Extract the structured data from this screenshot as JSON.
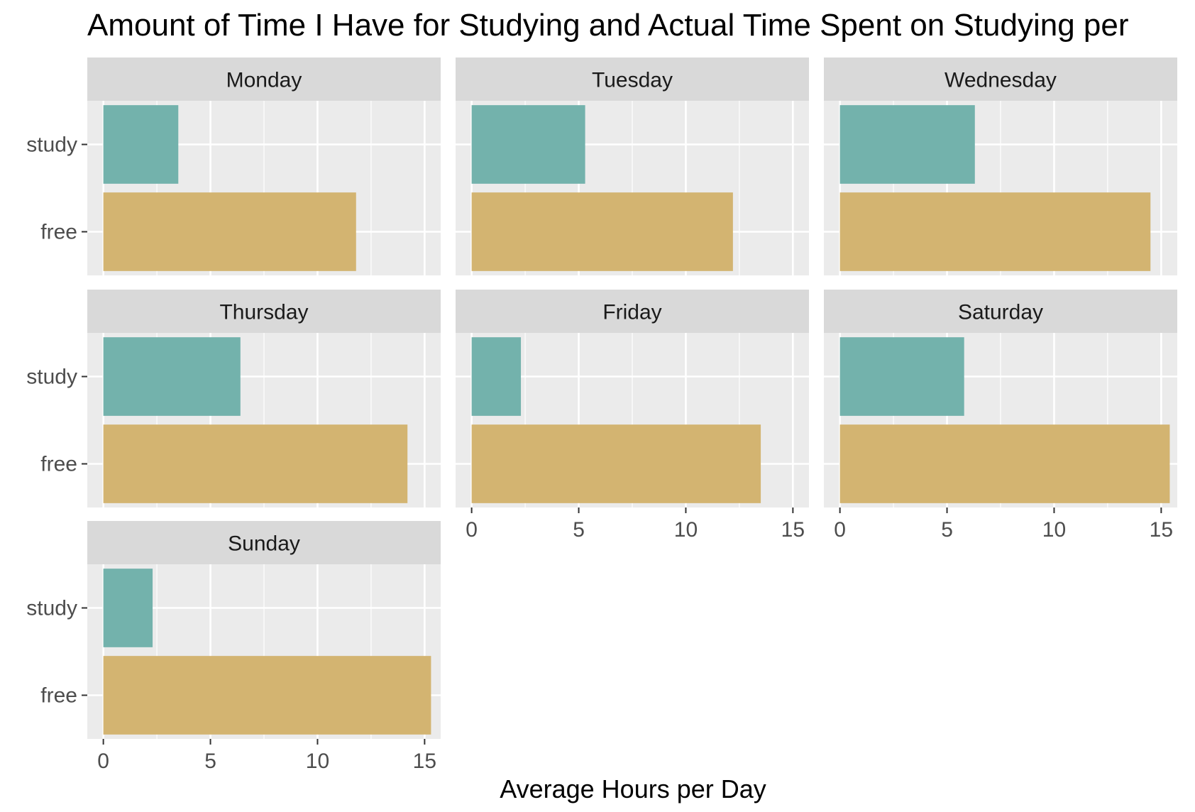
{
  "chart_data": {
    "type": "bar",
    "orientation": "horizontal",
    "title": "Amount of Time I Have for Studying and Actual Time Spent on Studying per",
    "xlabel": "Average Hours per Day",
    "ylabel": "",
    "xlim": [
      -0.75,
      15.75
    ],
    "x_ticks": [
      "0",
      "5",
      "10",
      "15"
    ],
    "categories": [
      "study",
      "free"
    ],
    "grid": true,
    "legend": "none",
    "colors": {
      "study": "#73B2AC",
      "free": "#D3B471"
    },
    "panel_background": "#EBEBEB",
    "strip_background": "#D9D9D9",
    "facets": [
      {
        "label": "Monday",
        "study": 3.5,
        "free": 11.8
      },
      {
        "label": "Tuesday",
        "study": 5.3,
        "free": 12.2
      },
      {
        "label": "Wednesday",
        "study": 6.3,
        "free": 14.5
      },
      {
        "label": "Thursday",
        "study": 6.4,
        "free": 14.2
      },
      {
        "label": "Friday",
        "study": 2.3,
        "free": 13.5
      },
      {
        "label": "Saturday",
        "study": 5.8,
        "free": 15.4
      },
      {
        "label": "Sunday",
        "study": 2.3,
        "free": 15.3
      }
    ]
  }
}
